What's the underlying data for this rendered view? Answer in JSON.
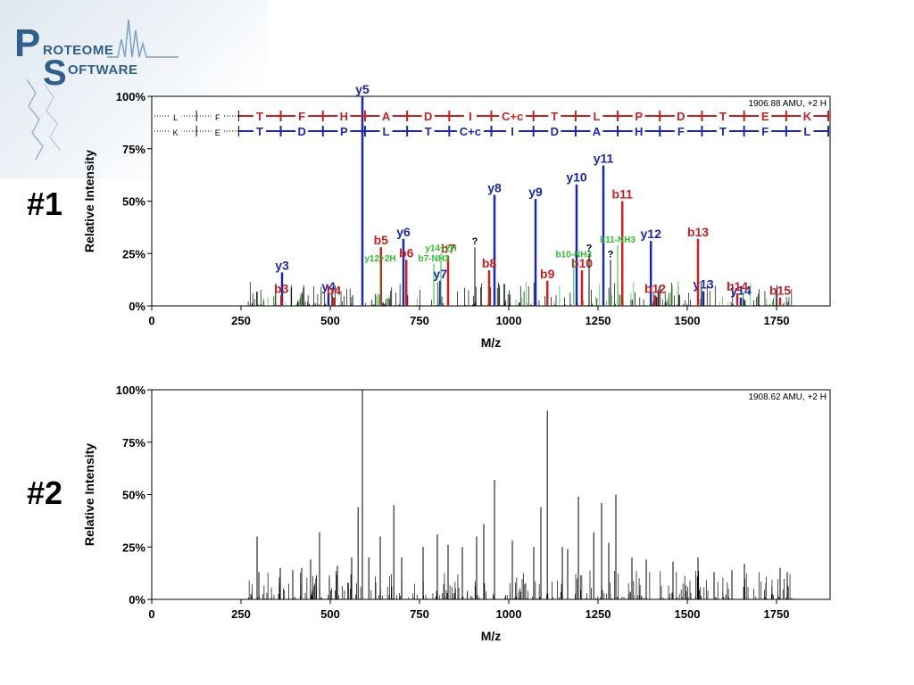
{
  "logo": {
    "p": "P",
    "roteome": "ROTEOME",
    "s": "S",
    "oftware": "OFTWARE"
  },
  "labels": {
    "one": "#1",
    "two": "#2"
  },
  "chart_data": [
    {
      "type": "bar",
      "title": "1906.88 AMU, +2 H",
      "xlabel": "M/z",
      "ylabel": "Relative Intensity",
      "xlim": [
        0,
        1900
      ],
      "ylim": [
        0,
        100
      ],
      "xticks": [
        0,
        250,
        500,
        750,
        1000,
        1250,
        1500,
        1750
      ],
      "yticks": [
        "0%",
        "25%",
        "50%",
        "75%",
        "100%"
      ],
      "b_series": [
        "L",
        "F",
        "T",
        "F",
        "H",
        "A",
        "D",
        "I",
        "C+c",
        "T",
        "L",
        "P",
        "D",
        "T",
        "E",
        "K"
      ],
      "y_series": [
        "K",
        "E",
        "T",
        "D",
        "P",
        "L",
        "T",
        "C+c",
        "I",
        "D",
        "A",
        "H",
        "F",
        "T",
        "F",
        "L"
      ],
      "peaks": [
        {
          "x": 365,
          "y": 16,
          "label": "y3",
          "color": "#1a27b3"
        },
        {
          "x": 363,
          "y": 5,
          "label": "b3",
          "color": "#cc1f1f"
        },
        {
          "x": 495,
          "y": 6,
          "label": "y4",
          "color": "#1a27b3"
        },
        {
          "x": 510,
          "y": 4,
          "label": "b4",
          "color": "#cc1f1f"
        },
        {
          "x": 590,
          "y": 100,
          "label": "y5",
          "color": "#1a27b3"
        },
        {
          "x": 642,
          "y": 28,
          "label": "b5",
          "color": "#cc1f1f"
        },
        {
          "x": 705,
          "y": 32,
          "label": "y6",
          "color": "#1a27b3"
        },
        {
          "x": 713,
          "y": 22,
          "label": "b6",
          "color": "#cc1f1f"
        },
        {
          "x": 808,
          "y": 12,
          "label": "y7",
          "color": "#1a27b3"
        },
        {
          "x": 830,
          "y": 24,
          "label": "b7",
          "color": "#cc1f1f"
        },
        {
          "x": 960,
          "y": 53,
          "label": "y8",
          "color": "#1a27b3"
        },
        {
          "x": 945,
          "y": 17,
          "label": "b8",
          "color": "#cc1f1f"
        },
        {
          "x": 1075,
          "y": 51,
          "label": "y9",
          "color": "#1a27b3"
        },
        {
          "x": 1108,
          "y": 12,
          "label": "b9",
          "color": "#cc1f1f"
        },
        {
          "x": 1190,
          "y": 58,
          "label": "y10",
          "color": "#1a27b3"
        },
        {
          "x": 1205,
          "y": 17,
          "label": "b10",
          "color": "#cc1f1f"
        },
        {
          "x": 1265,
          "y": 67,
          "label": "y11",
          "color": "#1a27b3"
        },
        {
          "x": 1318,
          "y": 50,
          "label": "b11",
          "color": "#cc1f1f"
        },
        {
          "x": 1398,
          "y": 31,
          "label": "y12",
          "color": "#1a27b3"
        },
        {
          "x": 1410,
          "y": 5,
          "label": "b12",
          "color": "#cc1f1f"
        },
        {
          "x": 1545,
          "y": 7,
          "label": "y13",
          "color": "#1a27b3"
        },
        {
          "x": 1530,
          "y": 32,
          "label": "b13",
          "color": "#cc1f1f"
        },
        {
          "x": 1650,
          "y": 4,
          "label": "y14",
          "color": "#1a27b3"
        },
        {
          "x": 1640,
          "y": 6,
          "label": "b14",
          "color": "#cc1f1f"
        },
        {
          "x": 1760,
          "y": 4,
          "label": "b15",
          "color": "#cc1f1f"
        },
        {
          "x": 640,
          "y": 20,
          "label": "y12+2H",
          "color": "#2bbf2b"
        },
        {
          "x": 810,
          "y": 25,
          "label": "y14+2H",
          "color": "#2bbf2b"
        },
        {
          "x": 790,
          "y": 20,
          "label": "b7-NH3",
          "color": "#2bbf2b"
        },
        {
          "x": 1305,
          "y": 29,
          "label": "b11-NH3",
          "color": "#2bbf2b"
        },
        {
          "x": 1182,
          "y": 22,
          "label": "b10-NH3",
          "color": "#2bbf2b"
        },
        {
          "x": 905,
          "y": 28,
          "label": "?",
          "color": "#000000"
        },
        {
          "x": 1225,
          "y": 25,
          "label": "?",
          "color": "#000000"
        },
        {
          "x": 1285,
          "y": 22,
          "label": "?",
          "color": "#000000"
        }
      ]
    },
    {
      "type": "bar",
      "title": "1908.62 AMU, +2 H",
      "xlabel": "M/z",
      "ylabel": "Relative Intensity",
      "xlim": [
        0,
        1900
      ],
      "ylim": [
        0,
        100
      ],
      "xticks": [
        0,
        250,
        500,
        750,
        1000,
        1250,
        1500,
        1750
      ],
      "yticks": [
        "0%",
        "25%",
        "50%",
        "75%",
        "100%"
      ],
      "peaks": [
        {
          "x": 295,
          "y": 30
        },
        {
          "x": 300,
          "y": 13
        },
        {
          "x": 360,
          "y": 15
        },
        {
          "x": 395,
          "y": 14
        },
        {
          "x": 420,
          "y": 15
        },
        {
          "x": 445,
          "y": 19
        },
        {
          "x": 470,
          "y": 32
        },
        {
          "x": 520,
          "y": 16
        },
        {
          "x": 560,
          "y": 20
        },
        {
          "x": 578,
          "y": 44
        },
        {
          "x": 590,
          "y": 100
        },
        {
          "x": 608,
          "y": 20
        },
        {
          "x": 640,
          "y": 30
        },
        {
          "x": 678,
          "y": 45
        },
        {
          "x": 700,
          "y": 20
        },
        {
          "x": 760,
          "y": 25
        },
        {
          "x": 800,
          "y": 31
        },
        {
          "x": 830,
          "y": 26
        },
        {
          "x": 870,
          "y": 25
        },
        {
          "x": 910,
          "y": 30
        },
        {
          "x": 930,
          "y": 36
        },
        {
          "x": 960,
          "y": 57
        },
        {
          "x": 1010,
          "y": 28
        },
        {
          "x": 1070,
          "y": 25
        },
        {
          "x": 1090,
          "y": 44
        },
        {
          "x": 1108,
          "y": 90
        },
        {
          "x": 1150,
          "y": 25
        },
        {
          "x": 1165,
          "y": 24
        },
        {
          "x": 1195,
          "y": 49
        },
        {
          "x": 1238,
          "y": 32
        },
        {
          "x": 1260,
          "y": 46
        },
        {
          "x": 1280,
          "y": 27
        },
        {
          "x": 1300,
          "y": 50
        },
        {
          "x": 1345,
          "y": 20
        },
        {
          "x": 1385,
          "y": 19
        },
        {
          "x": 1460,
          "y": 18
        },
        {
          "x": 1530,
          "y": 20
        },
        {
          "x": 1575,
          "y": 13
        },
        {
          "x": 1625,
          "y": 14
        },
        {
          "x": 1660,
          "y": 17
        },
        {
          "x": 1760,
          "y": 15
        },
        {
          "x": 1780,
          "y": 13
        }
      ]
    }
  ],
  "colors": {
    "b_ion": "#cc1f1f",
    "y_ion": "#1a27b3",
    "neutral_loss": "#2bbf2b",
    "logo": "#2e5f8d"
  }
}
